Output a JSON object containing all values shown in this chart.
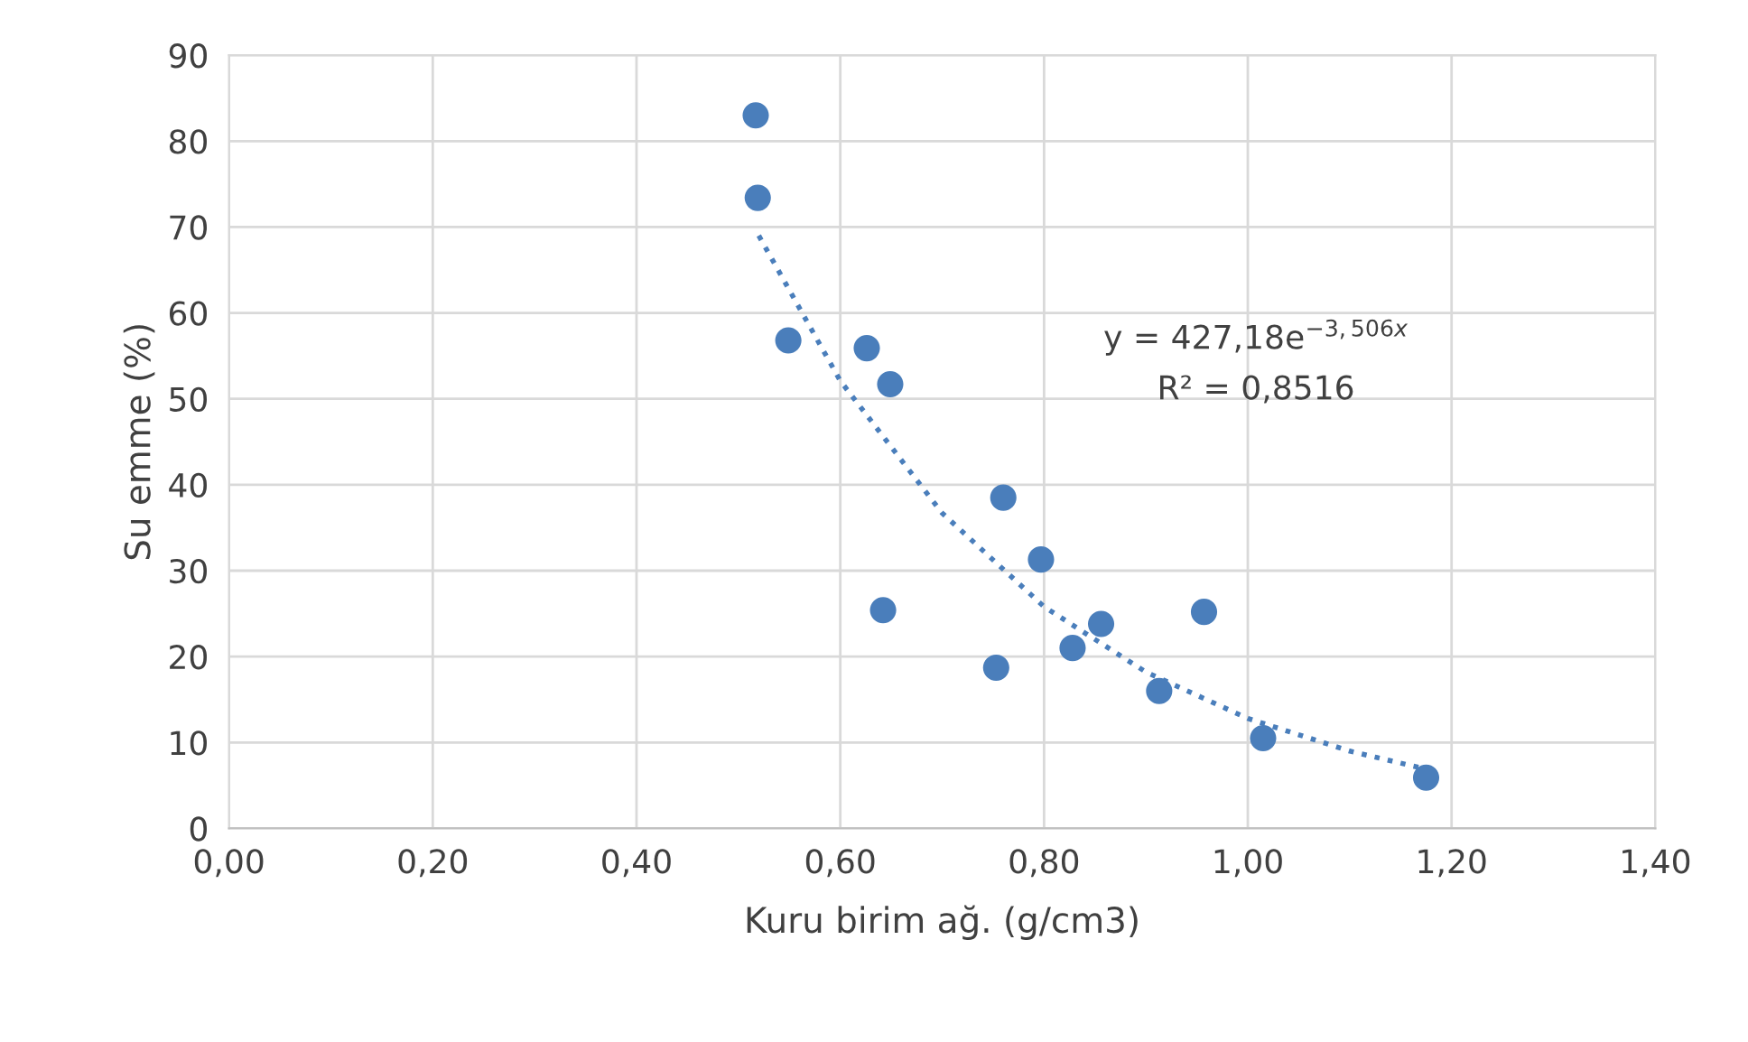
{
  "chart_data": {
    "type": "scatter",
    "xlabel": "Kuru birim ağ. (g/cm3)",
    "ylabel": "Su emme (%)",
    "xlim": [
      0,
      1.4
    ],
    "ylim": [
      0,
      90
    ],
    "xticks": [
      {
        "value": 0,
        "label": "0,00"
      },
      {
        "value": 0.2,
        "label": "0,20"
      },
      {
        "value": 0.4,
        "label": "0,40"
      },
      {
        "value": 0.6,
        "label": "0,60"
      },
      {
        "value": 0.8,
        "label": "0,80"
      },
      {
        "value": 1.0,
        "label": "1,00"
      },
      {
        "value": 1.2,
        "label": "1,20"
      },
      {
        "value": 1.4,
        "label": "1,40"
      }
    ],
    "yticks": [
      0,
      10,
      20,
      30,
      40,
      50,
      60,
      70,
      80,
      90
    ],
    "grid": true,
    "legend": false,
    "series": [
      {
        "color": "#4a7ebb",
        "marker": "circle",
        "x": [
          0.517,
          0.519,
          0.549,
          0.626,
          0.649,
          0.642,
          0.76,
          0.753,
          0.797,
          0.828,
          0.856,
          0.913,
          0.957,
          1.015,
          1.175
        ],
        "values": [
          83.0,
          73.4,
          56.8,
          55.9,
          51.7,
          25.4,
          38.5,
          18.7,
          31.3,
          21.0,
          23.8,
          16.0,
          25.2,
          10.5,
          5.9
        ]
      },
      {
        "type": "line",
        "color": "#4a7ebb",
        "marker": "none",
        "line_style": "dotted",
        "x": [
          0.52,
          0.6,
          0.7,
          0.8,
          0.9,
          1.0,
          1.1,
          1.175
        ],
        "values": [
          69.0,
          52.1,
          36.7,
          25.8,
          18.2,
          12.8,
          9.0,
          6.9
        ]
      }
    ],
    "annotations": [
      "y = 427,18e$^{−3,506x}$",
      "R² = 0,8516"
    ]
  }
}
